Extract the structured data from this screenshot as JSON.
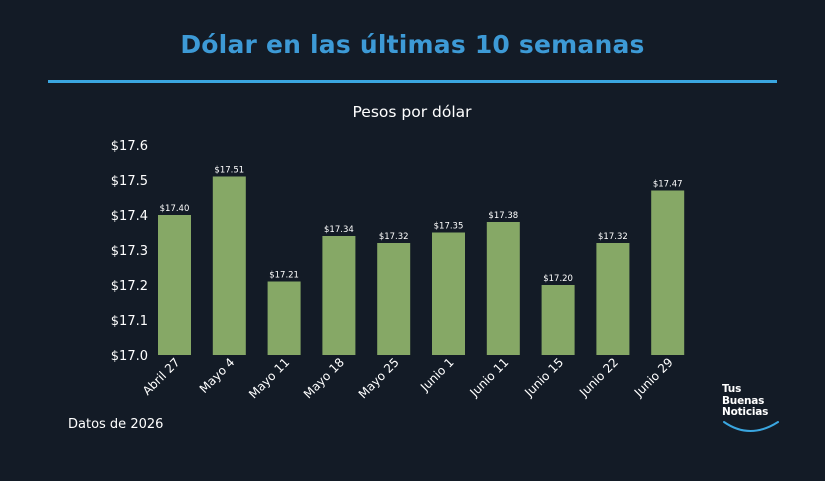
{
  "header": {
    "title": "Dólar en las últimas 10 semanas"
  },
  "footer": {
    "note": "Datos de 2026"
  },
  "logo": {
    "line1": "Tus",
    "line2": "Buenas",
    "line3": "Noticias"
  },
  "colors": {
    "background": "#131b26",
    "title": "#3d9ad6",
    "divider": "#3aa6e0",
    "bar": "#86a866",
    "text": "#ffffff"
  },
  "chart_data": {
    "type": "bar",
    "title": "Pesos por dólar",
    "xlabel": "",
    "ylabel": "",
    "ylim": [
      17.0,
      17.6
    ],
    "yticks": [
      17.0,
      17.1,
      17.2,
      17.3,
      17.4,
      17.5,
      17.6
    ],
    "ytick_labels": [
      "$17.0",
      "$17.1",
      "$17.2",
      "$17.3",
      "$17.4",
      "$17.5",
      "$17.6"
    ],
    "categories": [
      "Abril 27",
      "Mayo 4",
      "Mayo 11",
      "Mayo 18",
      "Mayo 25",
      "Junio 1",
      "Junio 11",
      "Junio 15",
      "Junio 22",
      "Junio 29"
    ],
    "values": [
      17.4,
      17.51,
      17.21,
      17.34,
      17.32,
      17.35,
      17.38,
      17.2,
      17.32,
      17.47
    ],
    "value_labels": [
      "$17.40",
      "$17.51",
      "$17.21",
      "$17.34",
      "$17.32",
      "$17.35",
      "$17.38",
      "$17.20",
      "$17.32",
      "$17.47"
    ],
    "grid": false,
    "legend": "none"
  }
}
